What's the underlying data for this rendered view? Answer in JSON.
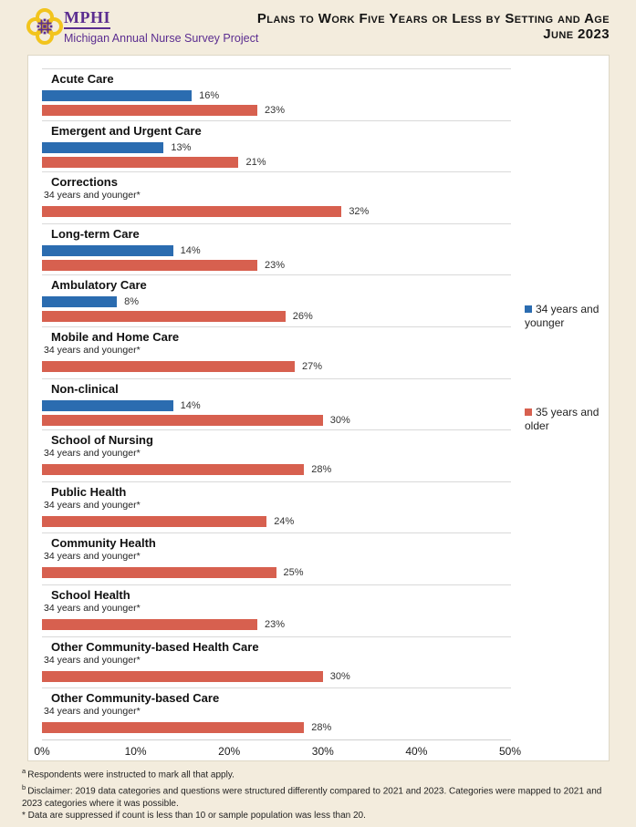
{
  "header": {
    "org": "MPHI",
    "tagline": "Michigan Annual Nurse Survey Project",
    "title_line1": "Plans to Work Five Years or Less by Setting and Age",
    "title_line2": "June 2023"
  },
  "chart_data": {
    "type": "bar",
    "orientation": "horizontal",
    "title": "Plans to Work Five Years or Less by Setting and Age",
    "subtitle": "June 2023",
    "unit": "percent",
    "xlim": [
      0,
      50
    ],
    "x_ticks": [
      "0%",
      "10%",
      "20%",
      "30%",
      "40%",
      "50%"
    ],
    "grid": "category-separators",
    "legend_position": "right",
    "suppressed_label": "34 years and younger*",
    "series": [
      {
        "name": "34 years and younger",
        "color": "#2b6cb0"
      },
      {
        "name": "35 years and older",
        "color": "#d7604f"
      }
    ],
    "categories": [
      {
        "label": "Acute Care",
        "younger": 16,
        "older": 23
      },
      {
        "label": "Emergent and Urgent Care",
        "younger": 13,
        "older": 21
      },
      {
        "label": "Corrections",
        "younger": null,
        "older": 32
      },
      {
        "label": "Long-term Care",
        "younger": 14,
        "older": 23
      },
      {
        "label": "Ambulatory Care",
        "younger": 8,
        "older": 26
      },
      {
        "label": "Mobile and Home Care",
        "younger": null,
        "older": 27
      },
      {
        "label": "Non-clinical",
        "younger": 14,
        "older": 30
      },
      {
        "label": "School of Nursing",
        "younger": null,
        "older": 28
      },
      {
        "label": "Public Health",
        "younger": null,
        "older": 24
      },
      {
        "label": "Community Health",
        "younger": null,
        "older": 25
      },
      {
        "label": "School Health",
        "younger": null,
        "older": 23
      },
      {
        "label": "Other Community-based Health Care",
        "younger": null,
        "older": 30
      },
      {
        "label": "Other Community-based Care",
        "younger": null,
        "older": 28
      }
    ],
    "legend": [
      {
        "label": "34 years and younger",
        "color": "#2b6cb0"
      },
      {
        "label": "35 years and older",
        "color": "#d7604f"
      }
    ]
  },
  "footnotes": [
    {
      "marker": "a",
      "superscript": true,
      "text": "Respondents were instructed to mark all that apply."
    },
    {
      "marker": "b",
      "superscript": true,
      "text": "Disclaimer: 2019 data categories and questions were structured differently compared to 2021 and 2023. Categories were mapped to 2021 and 2023 categories where it was possible."
    },
    {
      "marker": "*",
      "superscript": false,
      "text": "Data are suppressed if count is less than 10 or sample population was less than 20."
    }
  ],
  "colors": {
    "background": "#f3ecdd",
    "panel": "#ffffff",
    "younger_bar": "#2b6cb0",
    "older_bar": "#d7604f",
    "brand_purple": "#5b2d90",
    "brand_gold": "#f2c41d",
    "gridline": "#d9d9d9"
  }
}
